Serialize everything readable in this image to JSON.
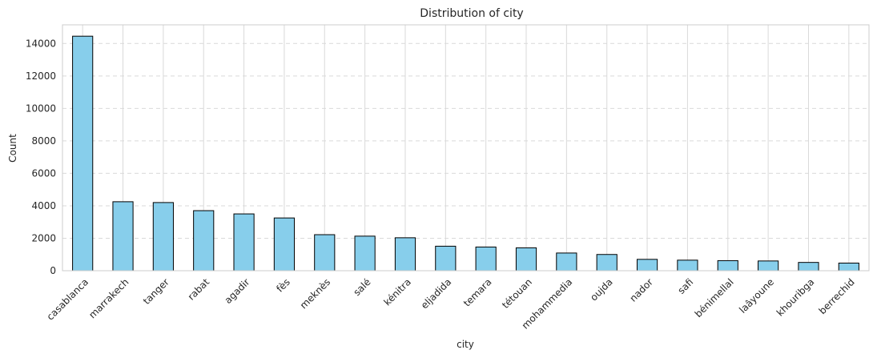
{
  "chart_data": {
    "type": "bar",
    "title": "Distribution of city",
    "xlabel": "city",
    "ylabel": "Count",
    "categories": [
      "casablanca",
      "marrakech",
      "tanger",
      "rabat",
      "agadir",
      "fès",
      "meknès",
      "salé",
      "kénitra",
      "eljadida",
      "temara",
      "tétouan",
      "mohammedia",
      "oujda",
      "nador",
      "safi",
      "bénimellal",
      "laâyoune",
      "khouribga",
      "berrechid"
    ],
    "values": [
      14450,
      4250,
      4200,
      3700,
      3500,
      3250,
      2220,
      2130,
      2030,
      1510,
      1460,
      1410,
      1090,
      1000,
      700,
      650,
      620,
      600,
      510,
      470
    ],
    "yticks": [
      0,
      2000,
      4000,
      6000,
      8000,
      10000,
      12000,
      14000
    ],
    "ylim": [
      0,
      15150
    ],
    "grid": true,
    "colors": {
      "bar_fill": "#87ceeb",
      "bar_edge": "#000000",
      "grid": "#d9d9d9",
      "frame": "#cccccc"
    }
  }
}
